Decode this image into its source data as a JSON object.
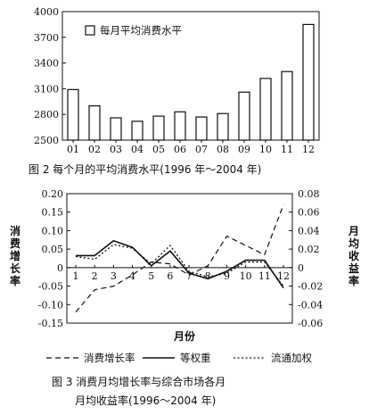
{
  "chart_data": [
    {
      "type": "bar",
      "categories": [
        "01",
        "02",
        "03",
        "04",
        "05",
        "06",
        "07",
        "08",
        "09",
        "10",
        "11",
        "12"
      ],
      "values": [
        3090,
        2900,
        2760,
        2720,
        2780,
        2830,
        2770,
        2810,
        3060,
        3220,
        3300,
        3850
      ],
      "ylim": [
        2500,
        4000
      ],
      "yticks": [
        "2500",
        "2800",
        "3100",
        "3400",
        "3700",
        "4000"
      ],
      "legend": "每月平均消费水平",
      "legend_position": "top-left",
      "caption": "图 2   每个月的平均消费水平(1996 年～2004 年)",
      "bar_fill": "#ffffff",
      "bar_stroke": "#111111"
    },
    {
      "type": "line",
      "x": [
        1,
        2,
        3,
        4,
        5,
        6,
        7,
        8,
        9,
        10,
        11,
        12
      ],
      "xticks": [
        "1",
        "2",
        "3",
        "4",
        "5",
        "6",
        "7",
        "8",
        "9",
        "10",
        "11",
        "12"
      ],
      "xlabel": "月份",
      "ylabel_left": "消费增长率",
      "ylabel_right": "月均收益率",
      "ylim_left": [
        -0.15,
        0.2
      ],
      "yticks_left": [
        "0.20",
        "0.15",
        "0.10",
        "0.05",
        "0",
        "-0.05",
        "-0.10",
        "-0.15"
      ],
      "ylim_right": [
        -0.06,
        0.08
      ],
      "yticks_right": [
        "0.08",
        "0.06",
        "0.04",
        "0.02",
        "0",
        "-0.02",
        "-0.04",
        "-0.06"
      ],
      "series": [
        {
          "name": "消费增长率",
          "axis": "left",
          "dash": "dashed",
          "values": [
            -0.12,
            -0.06,
            -0.05,
            -0.02,
            0.015,
            0.01,
            -0.02,
            0.005,
            0.085,
            0.06,
            0.035,
            0.17
          ]
        },
        {
          "name": "等权重",
          "axis": "right",
          "dash": "solid",
          "values": [
            0.013,
            0.013,
            0.029,
            0.022,
            0.002,
            0.018,
            -0.006,
            -0.012,
            -0.004,
            0.008,
            0.008,
            -0.022
          ]
        },
        {
          "name": "流通加权",
          "axis": "right",
          "dash": "dotted",
          "values": [
            0.012,
            0.009,
            0.025,
            0.021,
            0.004,
            0.024,
            -0.004,
            -0.01,
            -0.006,
            0.006,
            0.006,
            -0.02
          ]
        }
      ],
      "caption_line1": "图 3   消费月均增长率与综合市场各月",
      "caption_line2": "月均收益率(1996～2004 年)"
    }
  ]
}
